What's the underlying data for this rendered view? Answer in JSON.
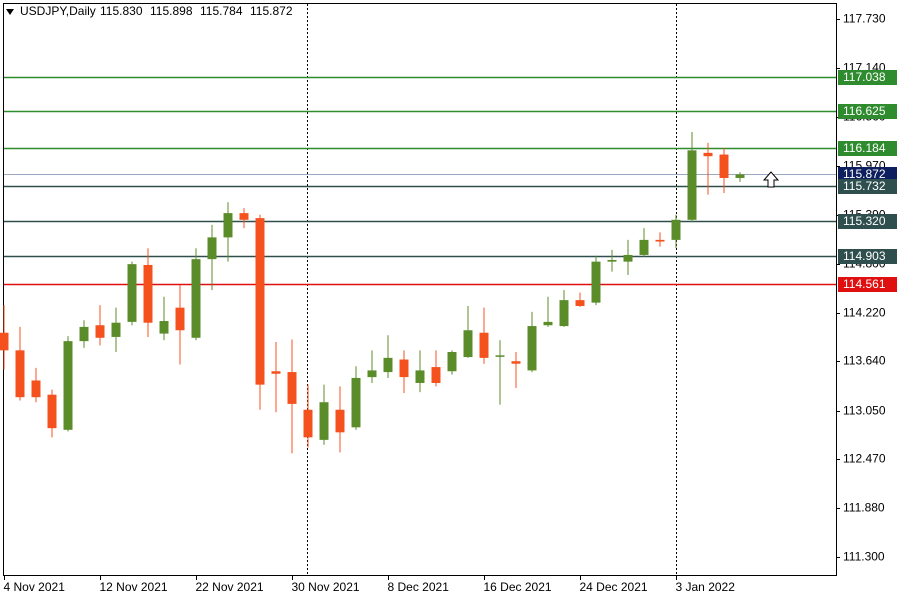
{
  "chart_data": {
    "type": "candlestick",
    "title": "USDJPY,Daily",
    "quote": [
      {
        "value": 115.83,
        "label": "115.830"
      },
      {
        "value": 115.898,
        "label": "115.898"
      },
      {
        "value": 115.784,
        "label": "115.784"
      },
      {
        "value": 115.872,
        "label": "115.872"
      }
    ],
    "categories": [
      "4 Nov 2021",
      null,
      null,
      null,
      null,
      null,
      "12 Nov 2021",
      null,
      null,
      null,
      null,
      null,
      "22 Nov 2021",
      null,
      null,
      null,
      null,
      null,
      "30 Nov 2021",
      null,
      null,
      null,
      null,
      null,
      "8 Dec 2021",
      null,
      null,
      null,
      null,
      null,
      "16 Dec 2021",
      null,
      null,
      null,
      null,
      null,
      "24 Dec 2021",
      null,
      null,
      null,
      null,
      null,
      "3 Jan 2022",
      null,
      null,
      null,
      null
    ],
    "open": [
      113.98,
      113.77,
      113.41,
      113.24,
      112.82,
      113.88,
      114.07,
      113.93,
      114.11,
      114.79,
      113.97,
      114.28,
      113.92,
      114.86,
      115.12,
      115.41,
      115.35,
      113.52,
      113.51,
      113.06,
      112.7,
      113.06,
      112.85,
      113.45,
      113.51,
      113.66,
      113.38,
      113.57,
      113.52,
      113.69,
      113.98,
      113.7,
      113.64,
      113.53,
      114.07,
      114.06,
      114.37,
      114.34,
      114.83,
      114.83,
      114.91,
      115.09,
      115.09,
      115.33,
      116.13,
      116.11,
      115.83
    ],
    "high": [
      114.31,
      114.05,
      113.56,
      113.3,
      113.94,
      114.13,
      114.31,
      114.28,
      114.83,
      114.99,
      114.41,
      114.55,
      114.99,
      115.27,
      115.54,
      115.47,
      115.39,
      113.87,
      113.9,
      113.36,
      113.36,
      113.34,
      113.58,
      113.77,
      113.95,
      113.77,
      113.77,
      113.77,
      113.77,
      114.3,
      114.28,
      113.89,
      113.75,
      114.23,
      114.41,
      114.49,
      114.46,
      114.9,
      114.97,
      115.09,
      115.23,
      115.18,
      115.39,
      116.38,
      116.25,
      116.19,
      115.898
    ],
    "low": [
      113.54,
      113.17,
      113.15,
      112.73,
      112.8,
      113.8,
      113.83,
      113.75,
      114.07,
      113.93,
      113.89,
      113.6,
      113.89,
      114.49,
      114.83,
      115.23,
      113.06,
      113.03,
      112.54,
      112.61,
      112.64,
      112.55,
      112.82,
      113.38,
      113.44,
      113.26,
      113.27,
      113.34,
      113.48,
      113.68,
      113.61,
      113.12,
      113.32,
      113.51,
      114.05,
      114.05,
      114.29,
      114.31,
      114.71,
      114.67,
      114.89,
      115.01,
      114.99,
      115.3,
      115.63,
      115.65,
      115.784
    ],
    "close": [
      113.77,
      113.21,
      113.21,
      112.84,
      113.88,
      114.05,
      113.92,
      114.1,
      114.8,
      114.1,
      114.12,
      114.01,
      114.86,
      115.12,
      115.41,
      115.33,
      113.36,
      113.49,
      113.13,
      112.73,
      113.15,
      112.79,
      113.44,
      113.53,
      113.68,
      113.45,
      113.53,
      113.38,
      113.75,
      114.01,
      113.68,
      113.71,
      113.61,
      114.06,
      114.11,
      114.37,
      114.3,
      114.83,
      114.85,
      114.91,
      115.09,
      115.07,
      115.33,
      116.16,
      116.09,
      115.83,
      115.872
    ],
    "up_color": "#5b8c2a",
    "down_color": "#f4511e",
    "ylim": [
      111.085,
      117.921
    ],
    "yticks": [
      {
        "value": 117.73,
        "label": "117.730"
      },
      {
        "value": 117.14,
        "label": "117.140"
      },
      {
        "value": 116.56,
        "label": "116.560"
      },
      {
        "value": 115.97,
        "label": "115.970"
      },
      {
        "value": 115.39,
        "label": "115.390"
      },
      {
        "value": 114.8,
        "label": "114.800"
      },
      {
        "value": 114.22,
        "label": "114.220"
      },
      {
        "value": 113.64,
        "label": "113.640"
      },
      {
        "value": 113.05,
        "label": "113.050"
      },
      {
        "value": 112.47,
        "label": "112.470"
      },
      {
        "value": 111.88,
        "label": "111.880"
      },
      {
        "value": 111.3,
        "label": "111.300"
      }
    ],
    "levels": [
      {
        "value": 117.038,
        "color": "#2e8b2e"
      },
      {
        "value": 116.625,
        "color": "#2e8b2e"
      },
      {
        "value": 116.184,
        "color": "#2e8b2e"
      },
      {
        "value": 115.872,
        "color": "#0d1f5e"
      },
      {
        "value": 115.732,
        "color": "#2f4f4f"
      },
      {
        "value": 115.32,
        "label": "115.320",
        "color": "#2f4f4f"
      },
      {
        "value": 114.903,
        "color": "#2f4f4f"
      },
      {
        "value": 114.561,
        "color": "#e01010"
      }
    ]
  }
}
